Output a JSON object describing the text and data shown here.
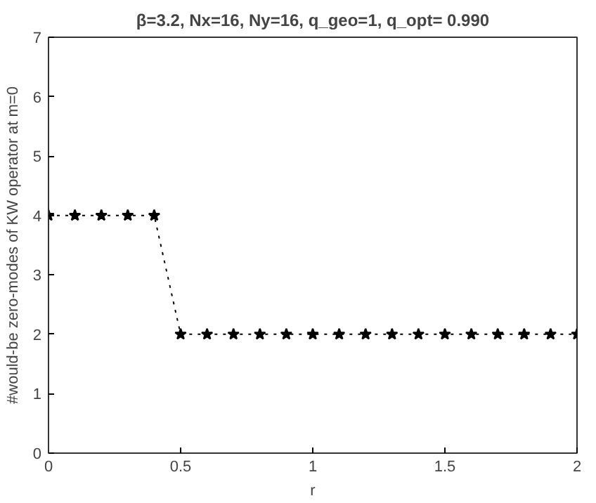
{
  "chart_data": {
    "type": "line",
    "title": "β=3.2, Nx=16, Ny=16, q_geo=1, q_opt= 0.990",
    "xlabel": "r",
    "ylabel": "#would-be zero-modes of KW operator at m=0",
    "x": [
      0,
      0.1,
      0.2,
      0.3,
      0.4,
      0.5,
      0.6,
      0.7,
      0.8,
      0.9,
      1.0,
      1.1,
      1.2,
      1.3,
      1.4,
      1.5,
      1.6,
      1.7,
      1.8,
      1.9,
      2.0
    ],
    "series": [
      {
        "color": "#000000",
        "values": [
          4,
          4,
          4,
          4,
          4,
          2,
          2,
          2,
          2,
          2,
          2,
          2,
          2,
          2,
          2,
          2,
          2,
          2,
          2,
          2,
          2
        ]
      }
    ],
    "xlim": [
      0,
      2
    ],
    "xticks": [
      0,
      0.5,
      1,
      1.5,
      2
    ],
    "ylim": [
      0,
      7
    ],
    "yticks": [
      0,
      1,
      2,
      3,
      4,
      5,
      6,
      7
    ],
    "grid": false,
    "marker": "star",
    "line_style": "dotted"
  }
}
